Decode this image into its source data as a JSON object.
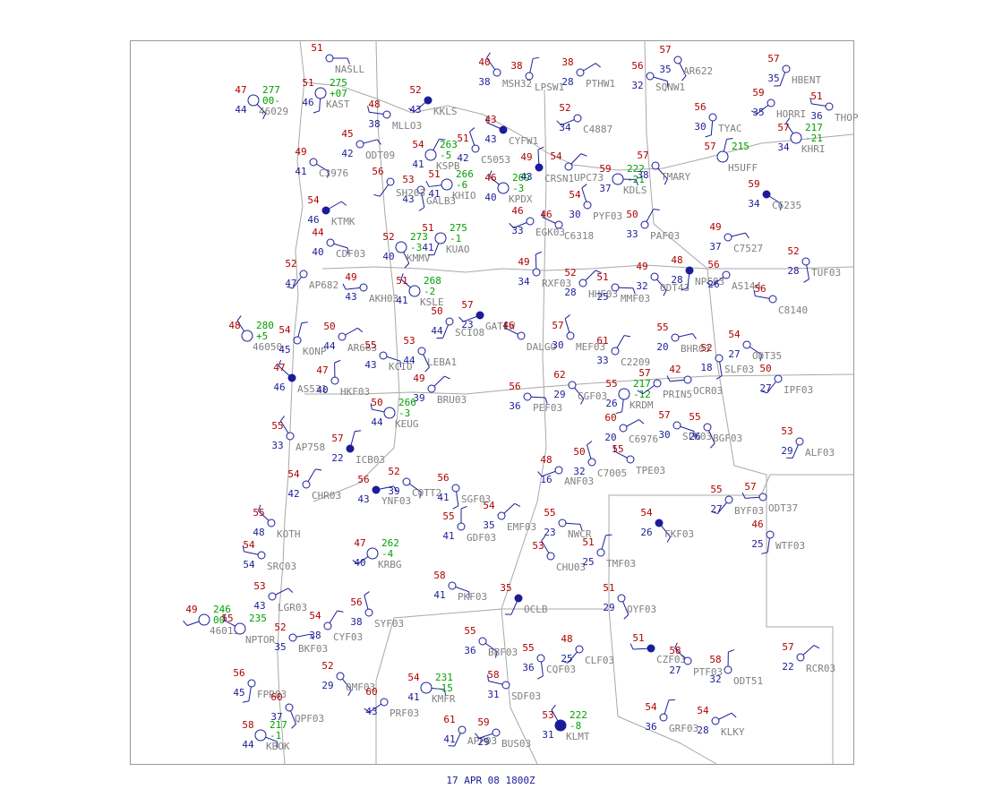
{
  "title": "17 APR 08  1800Z",
  "stations": [
    {
      "id": "NASLL",
      "temp": 51
    },
    {
      "id": "46029",
      "temp": 47,
      "dew": 44,
      "pressure": 277,
      "tendency": "00-"
    },
    {
      "id": "KAST",
      "temp": 51,
      "dew": 46,
      "pressure": 275,
      "tendency": "+07"
    },
    {
      "id": "KKLS",
      "temp": 52,
      "dew": 43
    },
    {
      "id": "MLLO3",
      "temp": 48,
      "dew": 38
    },
    {
      "id": "MSH32",
      "temp": 40,
      "dew": 38
    },
    {
      "id": "LPSW1",
      "temp": 38
    },
    {
      "id": "PTHW1",
      "temp": 38,
      "dew": 28
    },
    {
      "id": "SQNW1",
      "temp": 56,
      "dew": 32
    },
    {
      "id": "AR622",
      "temp": 57,
      "dew": 35
    },
    {
      "id": "HBENT",
      "temp": 57,
      "dew": 35
    },
    {
      "id": "C4887",
      "temp": 52,
      "dew": 34
    },
    {
      "id": "CYFW1",
      "temp": 43,
      "dew": 43
    },
    {
      "id": "C5053",
      "temp": 51,
      "dew": 42
    },
    {
      "id": "KSPB",
      "temp": 54,
      "dew": 41,
      "pressure": 263,
      "tendency": "-5"
    },
    {
      "id": "ODT09",
      "temp": 45,
      "dew": 42
    },
    {
      "id": "C3976",
      "temp": 49,
      "dew": 41
    },
    {
      "id": "GALB3",
      "temp": 53,
      "dew": 43
    },
    {
      "id": "SH203",
      "temp": 56
    },
    {
      "id": "KHIO",
      "temp": 51,
      "dew": 41,
      "pressure": 266,
      "tendency": "-6"
    },
    {
      "id": "KPDX",
      "temp": 46,
      "dew": 40,
      "pressure": 269,
      "tendency": "-3"
    },
    {
      "id": "CRSN1",
      "temp": 49,
      "dew": 43
    },
    {
      "id": "UPC73",
      "temp": 54
    },
    {
      "id": "KDLS",
      "temp": 59,
      "dew": 37,
      "pressure": 222,
      "tendency": "-21"
    },
    {
      "id": "TMARY",
      "temp": 57,
      "dew": 38
    },
    {
      "id": "TYAC",
      "temp": 56,
      "dew": 30
    },
    {
      "id": "HORRI",
      "temp": 59,
      "dew": 35
    },
    {
      "id": "THOP",
      "temp": 51,
      "dew": 36
    },
    {
      "id": "KHRI",
      "temp": 57,
      "dew": 34,
      "pressure": 217,
      "tendency": "-21"
    },
    {
      "id": "H5UFF",
      "temp": 57,
      "pressure": 215
    },
    {
      "id": "KTMK",
      "temp": 54,
      "dew": 46
    },
    {
      "id": "CDF03",
      "temp": 44,
      "dew": 40
    },
    {
      "id": "KMMV",
      "temp": 52,
      "dew": 40,
      "pressure": 273,
      "tendency": "-3"
    },
    {
      "id": "KUAO",
      "temp": 51,
      "dew": 41,
      "pressure": 275,
      "tendency": "-1"
    },
    {
      "id": "EGK03",
      "temp": 46,
      "dew": 33
    },
    {
      "id": "C6318",
      "temp": 46
    },
    {
      "id": "PYF03",
      "temp": 54,
      "dew": 30
    },
    {
      "id": "PAF03",
      "temp": 50,
      "dew": 33
    },
    {
      "id": "C7527",
      "temp": 49,
      "dew": 37
    },
    {
      "id": "C6235",
      "temp": 59,
      "dew": 34
    },
    {
      "id": "TUF03",
      "temp": 52,
      "dew": 28
    },
    {
      "id": "AP682",
      "temp": 52,
      "dew": 47
    },
    {
      "id": "AKH03",
      "temp": 49,
      "dew": 43
    },
    {
      "id": "KSLE",
      "temp": 51,
      "dew": 41,
      "pressure": 268,
      "tendency": "-2"
    },
    {
      "id": "RXF03",
      "temp": 49,
      "dew": 34
    },
    {
      "id": "HHF03",
      "temp": 52,
      "dew": 28
    },
    {
      "id": "MMF03",
      "temp": 51,
      "dew": 25
    },
    {
      "id": "ODT43",
      "temp": 49,
      "dew": 32
    },
    {
      "id": "NPF03",
      "temp": 48,
      "dew": 28
    },
    {
      "id": "AS144",
      "temp": 56,
      "dew": 26
    },
    {
      "id": "C8140",
      "temp": 56
    },
    {
      "id": "46050",
      "temp": 48,
      "pressure": 280,
      "tendency": "+5"
    },
    {
      "id": "KONP",
      "temp": 54,
      "dew": 45
    },
    {
      "id": "AR663",
      "temp": 50,
      "dew": 44
    },
    {
      "id": "KCIO",
      "temp": 55,
      "dew": 43
    },
    {
      "id": "LEBA1",
      "temp": 53,
      "dew": 44
    },
    {
      "id": "SCIO8",
      "temp": 50,
      "dew": 44
    },
    {
      "id": "GATEW",
      "temp": 57,
      "dew": 23
    },
    {
      "id": "DALGO",
      "temp": 46
    },
    {
      "id": "MEF03",
      "temp": 57,
      "dew": 30
    },
    {
      "id": "C2209",
      "temp": 61,
      "dew": 33
    },
    {
      "id": "BHR03",
      "temp": 55,
      "dew": 20
    },
    {
      "id": "ODT35",
      "temp": 54,
      "dew": 27
    },
    {
      "id": "SLF03",
      "temp": 52,
      "dew": 18
    },
    {
      "id": "IPF03",
      "temp": 50,
      "dew": 27
    },
    {
      "id": "OCR03",
      "temp": 42
    },
    {
      "id": "AS531",
      "temp": 47,
      "dew": 46
    },
    {
      "id": "HKF03",
      "temp": 47,
      "dew": 40
    },
    {
      "id": "BRU03",
      "temp": 49,
      "dew": 39
    },
    {
      "id": "PEF03",
      "temp": 56,
      "dew": 36
    },
    {
      "id": "CGF03",
      "temp": 62,
      "dew": 29
    },
    {
      "id": "KRDM",
      "temp": 55,
      "dew": 26,
      "pressure": 217,
      "tendency": "-12"
    },
    {
      "id": "PRIN5",
      "temp": 57
    },
    {
      "id": "KEUG",
      "temp": 50,
      "dew": 44,
      "pressure": 266,
      "tendency": "-3"
    },
    {
      "id": "AP758",
      "temp": 55,
      "dew": 33
    },
    {
      "id": "ICB03",
      "temp": 57,
      "dew": 22
    },
    {
      "id": "C6976",
      "temp": 60,
      "dew": 20
    },
    {
      "id": "SLK03",
      "temp": 57,
      "dew": 30
    },
    {
      "id": "BGF03",
      "temp": 55,
      "dew": 26
    },
    {
      "id": "ALF03",
      "temp": 53,
      "dew": 29
    },
    {
      "id": "ANF03",
      "temp": 48,
      "dew": 16
    },
    {
      "id": "TPE03",
      "temp": 55
    },
    {
      "id": "C7005",
      "temp": 50,
      "dew": 32
    },
    {
      "id": "CHR03",
      "temp": 54,
      "dew": 42
    },
    {
      "id": "YNF03",
      "temp": 56,
      "dew": 43
    },
    {
      "id": "COTT2",
      "temp": 52,
      "dew": 39
    },
    {
      "id": "SGF03",
      "temp": 56,
      "dew": 41
    },
    {
      "id": "BYF03",
      "temp": 55,
      "dew": 27
    },
    {
      "id": "ODT37",
      "temp": 57
    },
    {
      "id": "KOTH",
      "temp": 55,
      "dew": 48
    },
    {
      "id": "GDF03",
      "temp": 55,
      "dew": 41
    },
    {
      "id": "EMF03",
      "temp": 54,
      "dew": 35
    },
    {
      "id": "NWCR",
      "temp": 55,
      "dew": 23
    },
    {
      "id": "FKF03",
      "temp": 54,
      "dew": 26
    },
    {
      "id": "WTF03",
      "temp": 46,
      "dew": 25
    },
    {
      "id": "KRBG",
      "temp": 47,
      "dew": 40,
      "pressure": 262,
      "tendency": "-4"
    },
    {
      "id": "SRC03",
      "temp": 54,
      "dew": 54
    },
    {
      "id": "CHU03",
      "temp": 53
    },
    {
      "id": "TMF03",
      "temp": 51,
      "dew": 25
    },
    {
      "id": "LGR03",
      "temp": 53,
      "dew": 43
    },
    {
      "id": "PKF03",
      "temp": 58,
      "dew": 41
    },
    {
      "id": "OYF03",
      "temp": 51,
      "dew": 29
    },
    {
      "id": "OCLB",
      "temp": 35
    },
    {
      "id": "46015",
      "temp": 49,
      "pressure": 246,
      "tendency": "00"
    },
    {
      "id": "NPTOR",
      "temp": 55,
      "pressure": 235
    },
    {
      "id": "SYF03",
      "temp": 56,
      "dew": 38
    },
    {
      "id": "CYF03",
      "temp": 54,
      "dew": 38
    },
    {
      "id": "BKF03",
      "temp": 52,
      "dew": 35
    },
    {
      "id": "BBF03",
      "temp": 55,
      "dew": 36
    },
    {
      "id": "CQF03",
      "temp": 55,
      "dew": 36
    },
    {
      "id": "CLF03",
      "temp": 48,
      "dew": 25
    },
    {
      "id": "CZF03",
      "temp": 51
    },
    {
      "id": "PTF03",
      "temp": 58,
      "dew": 27
    },
    {
      "id": "ODT51",
      "temp": 58,
      "dew": 32
    },
    {
      "id": "RCR03",
      "temp": 57,
      "dew": 22
    },
    {
      "id": "KMFR",
      "temp": 54,
      "dew": 41,
      "pressure": 231,
      "tendency": "-15"
    },
    {
      "id": "OMF03",
      "temp": 52,
      "dew": 29
    },
    {
      "id": "FPR03",
      "temp": 56,
      "dew": 45
    },
    {
      "id": "PRF03",
      "temp": 60,
      "dew": 43
    },
    {
      "id": "SDF03",
      "temp": 58,
      "dew": 31
    },
    {
      "id": "KLMT",
      "temp": 53,
      "dew": 31,
      "pressure": 222,
      "tendency": "-8"
    },
    {
      "id": "GRF03",
      "temp": 54,
      "dew": 36
    },
    {
      "id": "KLKY",
      "temp": 54,
      "dew": 28
    },
    {
      "id": "KBOK",
      "temp": 58,
      "dew": 44,
      "pressure": 217,
      "tendency": "-1"
    },
    {
      "id": "QPF03",
      "temp": 60,
      "dew": 37
    },
    {
      "id": "APP03",
      "temp": 61,
      "dew": 41
    },
    {
      "id": "BUS03",
      "temp": 59,
      "dew": 29
    }
  ]
}
